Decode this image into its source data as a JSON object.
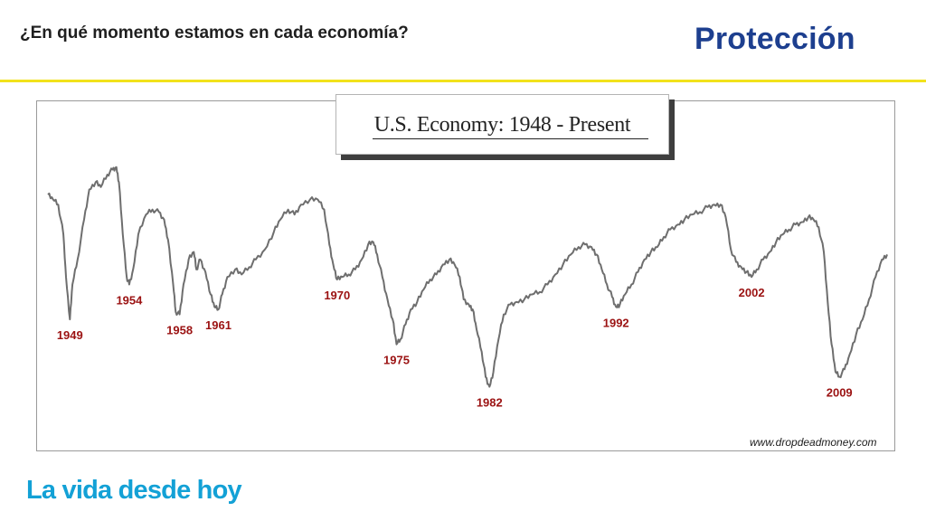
{
  "header": {
    "question": "¿En qué momento estamos en cada economía?",
    "brand": "Protección",
    "rule_color": "#f2e21c",
    "brand_color": "#1d3f8f"
  },
  "footer": {
    "tagline": "La vida desde hoy",
    "tagline_color": "#13a1d6"
  },
  "chart_data": {
    "type": "line",
    "title": "U.S. Economy: 1948 - Present",
    "source": "www.dropdeadmoney.com",
    "xlabel": "",
    "ylabel": "",
    "xlim": [
      1948,
      2013
    ],
    "ylim": [
      0,
      100
    ],
    "grid": false,
    "legend": "none",
    "line_color": "#6e6e6e",
    "label_color": "#9b1212",
    "series": [
      {
        "points": [
          [
            1948.0,
            88
          ],
          [
            1948.4,
            86
          ],
          [
            1948.8,
            84
          ],
          [
            1949.2,
            72
          ],
          [
            1949.4,
            55
          ],
          [
            1949.7,
            38
          ],
          [
            1949.9,
            52
          ],
          [
            1950.3,
            62
          ],
          [
            1950.8,
            78
          ],
          [
            1951.2,
            90
          ],
          [
            1951.7,
            93
          ],
          [
            1952.1,
            91
          ],
          [
            1952.6,
            96
          ],
          [
            1953.0,
            98
          ],
          [
            1953.3,
            99
          ],
          [
            1953.5,
            93
          ],
          [
            1953.8,
            72
          ],
          [
            1954.1,
            55
          ],
          [
            1954.3,
            52
          ],
          [
            1954.6,
            58
          ],
          [
            1955.0,
            72
          ],
          [
            1955.6,
            80
          ],
          [
            1956.1,
            82
          ],
          [
            1956.6,
            81
          ],
          [
            1957.0,
            78
          ],
          [
            1957.3,
            70
          ],
          [
            1957.7,
            52
          ],
          [
            1957.9,
            41
          ],
          [
            1958.2,
            40
          ],
          [
            1958.5,
            52
          ],
          [
            1958.9,
            62
          ],
          [
            1959.3,
            65
          ],
          [
            1959.5,
            58
          ],
          [
            1959.8,
            62
          ],
          [
            1960.2,
            57
          ],
          [
            1960.6,
            48
          ],
          [
            1960.9,
            43
          ],
          [
            1961.2,
            42
          ],
          [
            1961.5,
            48
          ],
          [
            1961.9,
            55
          ],
          [
            1962.5,
            58
          ],
          [
            1963.0,
            56
          ],
          [
            1963.6,
            59
          ],
          [
            1964.1,
            62
          ],
          [
            1964.8,
            66
          ],
          [
            1965.5,
            73
          ],
          [
            1966.0,
            78
          ],
          [
            1966.6,
            82
          ],
          [
            1967.1,
            80
          ],
          [
            1967.6,
            84
          ],
          [
            1968.3,
            86
          ],
          [
            1968.9,
            86
          ],
          [
            1969.4,
            82
          ],
          [
            1969.8,
            68
          ],
          [
            1970.1,
            60
          ],
          [
            1970.4,
            54
          ],
          [
            1970.8,
            55
          ],
          [
            1971.3,
            56
          ],
          [
            1971.8,
            58
          ],
          [
            1972.3,
            62
          ],
          [
            1972.8,
            68
          ],
          [
            1973.2,
            69
          ],
          [
            1973.5,
            64
          ],
          [
            1973.9,
            55
          ],
          [
            1974.3,
            46
          ],
          [
            1974.7,
            38
          ],
          [
            1975.0,
            28
          ],
          [
            1975.3,
            30
          ],
          [
            1975.7,
            36
          ],
          [
            1976.1,
            42
          ],
          [
            1976.6,
            45
          ],
          [
            1977.1,
            50
          ],
          [
            1977.6,
            54
          ],
          [
            1978.1,
            56
          ],
          [
            1978.6,
            60
          ],
          [
            1979.1,
            62
          ],
          [
            1979.5,
            60
          ],
          [
            1979.9,
            55
          ],
          [
            1980.2,
            46
          ],
          [
            1980.6,
            44
          ],
          [
            1980.9,
            42
          ],
          [
            1981.2,
            34
          ],
          [
            1981.6,
            25
          ],
          [
            1981.9,
            15
          ],
          [
            1982.2,
            11
          ],
          [
            1982.5,
            17
          ],
          [
            1982.9,
            30
          ],
          [
            1983.3,
            40
          ],
          [
            1983.8,
            44
          ],
          [
            1984.3,
            45
          ],
          [
            1984.9,
            46
          ],
          [
            1985.5,
            48
          ],
          [
            1986.1,
            49
          ],
          [
            1986.7,
            52
          ],
          [
            1987.3,
            56
          ],
          [
            1987.9,
            60
          ],
          [
            1988.5,
            64
          ],
          [
            1989.1,
            67
          ],
          [
            1989.6,
            68
          ],
          [
            1990.1,
            67
          ],
          [
            1990.5,
            64
          ],
          [
            1990.9,
            58
          ],
          [
            1991.3,
            52
          ],
          [
            1991.7,
            47
          ],
          [
            1992.0,
            43
          ],
          [
            1992.3,
            44
          ],
          [
            1992.7,
            48
          ],
          [
            1993.2,
            52
          ],
          [
            1993.7,
            57
          ],
          [
            1994.2,
            62
          ],
          [
            1994.7,
            65
          ],
          [
            1995.2,
            67
          ],
          [
            1995.7,
            71
          ],
          [
            1996.2,
            74
          ],
          [
            1996.8,
            76
          ],
          [
            1997.3,
            78
          ],
          [
            1997.9,
            80
          ],
          [
            1998.5,
            81
          ],
          [
            1999.1,
            83
          ],
          [
            1999.6,
            84
          ],
          [
            2000.1,
            84
          ],
          [
            2000.5,
            79
          ],
          [
            2000.9,
            66
          ],
          [
            2001.3,
            61
          ],
          [
            2001.7,
            59
          ],
          [
            2002.1,
            57
          ],
          [
            2002.5,
            55
          ],
          [
            2002.9,
            58
          ],
          [
            2003.4,
            62
          ],
          [
            2003.9,
            65
          ],
          [
            2004.4,
            69
          ],
          [
            2004.9,
            72
          ],
          [
            2005.4,
            74
          ],
          [
            2005.9,
            76
          ],
          [
            2006.4,
            77
          ],
          [
            2006.9,
            79
          ],
          [
            2007.3,
            78
          ],
          [
            2007.7,
            75
          ],
          [
            2008.1,
            65
          ],
          [
            2008.4,
            45
          ],
          [
            2008.7,
            28
          ],
          [
            2009.0,
            17
          ],
          [
            2009.3,
            15
          ],
          [
            2009.7,
            18
          ],
          [
            2010.1,
            24
          ],
          [
            2010.6,
            32
          ],
          [
            2011.1,
            38
          ],
          [
            2011.6,
            46
          ],
          [
            2012.1,
            55
          ],
          [
            2012.6,
            62
          ],
          [
            2013.0,
            64
          ]
        ]
      }
    ],
    "annotations": [
      {
        "label": "1949",
        "x": 1949.7,
        "y": 38,
        "pos": "below"
      },
      {
        "label": "1954",
        "x": 1954.3,
        "y": 52,
        "pos": "below"
      },
      {
        "label": "1958",
        "x": 1958.2,
        "y": 40,
        "pos": "below"
      },
      {
        "label": "1961",
        "x": 1961.2,
        "y": 42,
        "pos": "below"
      },
      {
        "label": "1970",
        "x": 1970.4,
        "y": 54,
        "pos": "below"
      },
      {
        "label": "1975",
        "x": 1975.0,
        "y": 28,
        "pos": "below"
      },
      {
        "label": "1982",
        "x": 1982.2,
        "y": 11,
        "pos": "below"
      },
      {
        "label": "1992",
        "x": 1992.0,
        "y": 43,
        "pos": "below"
      },
      {
        "label": "2002",
        "x": 2002.5,
        "y": 55,
        "pos": "below"
      },
      {
        "label": "2009",
        "x": 2009.3,
        "y": 15,
        "pos": "below"
      }
    ]
  }
}
